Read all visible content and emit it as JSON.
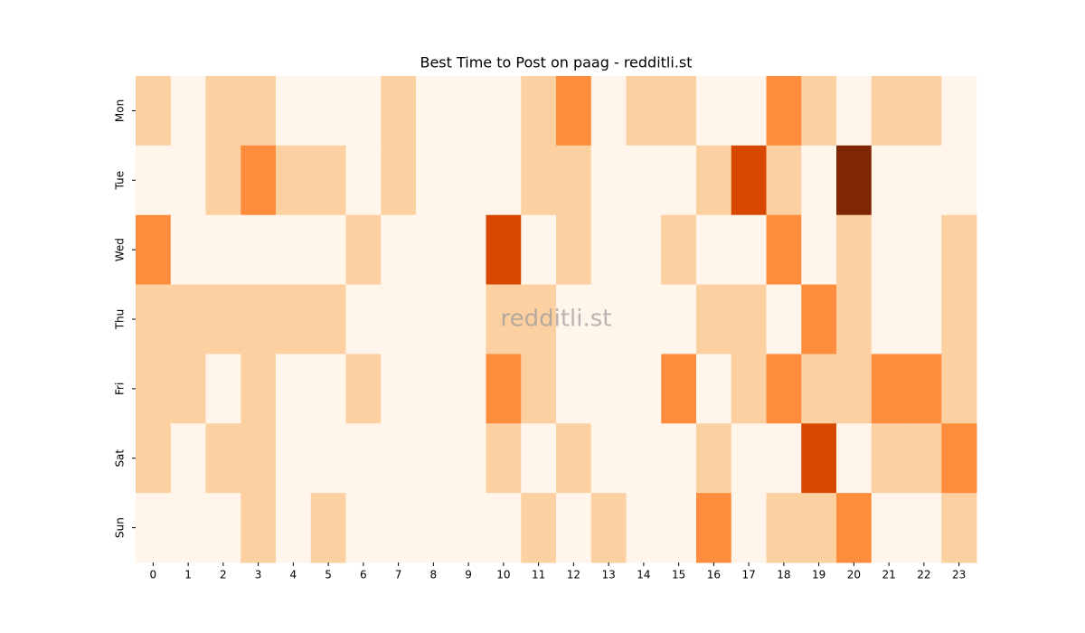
{
  "chart_data": {
    "type": "heatmap",
    "title": "Best Time to Post on paag - redditli.st",
    "watermark": "redditli.st",
    "categories": [
      0,
      1,
      2,
      3,
      4,
      5,
      6,
      7,
      8,
      9,
      10,
      11,
      12,
      13,
      14,
      15,
      16,
      17,
      18,
      19,
      20,
      21,
      22,
      23
    ],
    "rows": [
      "Mon",
      "Tue",
      "Wed",
      "Thu",
      "Fri",
      "Sat",
      "Sun"
    ],
    "values": [
      [
        1,
        0,
        1,
        1,
        0,
        0,
        0,
        1,
        0,
        0,
        0,
        1,
        2,
        0,
        1,
        1,
        0,
        0,
        2,
        1,
        0,
        1,
        1,
        0
      ],
      [
        0,
        0,
        1,
        2,
        1,
        1,
        0,
        1,
        0,
        0,
        0,
        1,
        1,
        0,
        0,
        0,
        1,
        3,
        1,
        0,
        4,
        0,
        0,
        0
      ],
      [
        2,
        0,
        0,
        0,
        0,
        0,
        1,
        0,
        0,
        0,
        3,
        0,
        1,
        0,
        0,
        1,
        0,
        0,
        2,
        0,
        1,
        0,
        0,
        1
      ],
      [
        1,
        1,
        1,
        1,
        1,
        1,
        0,
        0,
        0,
        0,
        1,
        1,
        0,
        0,
        0,
        0,
        1,
        1,
        0,
        2,
        1,
        0,
        0,
        1
      ],
      [
        1,
        1,
        0,
        1,
        0,
        0,
        1,
        0,
        0,
        0,
        2,
        1,
        0,
        0,
        0,
        2,
        0,
        1,
        2,
        1,
        1,
        2,
        2,
        1
      ],
      [
        1,
        0,
        1,
        1,
        0,
        0,
        0,
        0,
        0,
        0,
        1,
        0,
        1,
        0,
        0,
        0,
        1,
        0,
        0,
        3,
        0,
        1,
        1,
        2
      ],
      [
        0,
        0,
        0,
        1,
        0,
        1,
        0,
        0,
        0,
        0,
        0,
        1,
        0,
        1,
        0,
        0,
        2,
        0,
        1,
        1,
        2,
        0,
        0,
        1
      ]
    ],
    "color_scale": {
      "min": 0,
      "max": 4,
      "colors": [
        "#fff5eb",
        "#fdd0a2",
        "#fd8d3c",
        "#d94801",
        "#7f2704"
      ]
    }
  }
}
